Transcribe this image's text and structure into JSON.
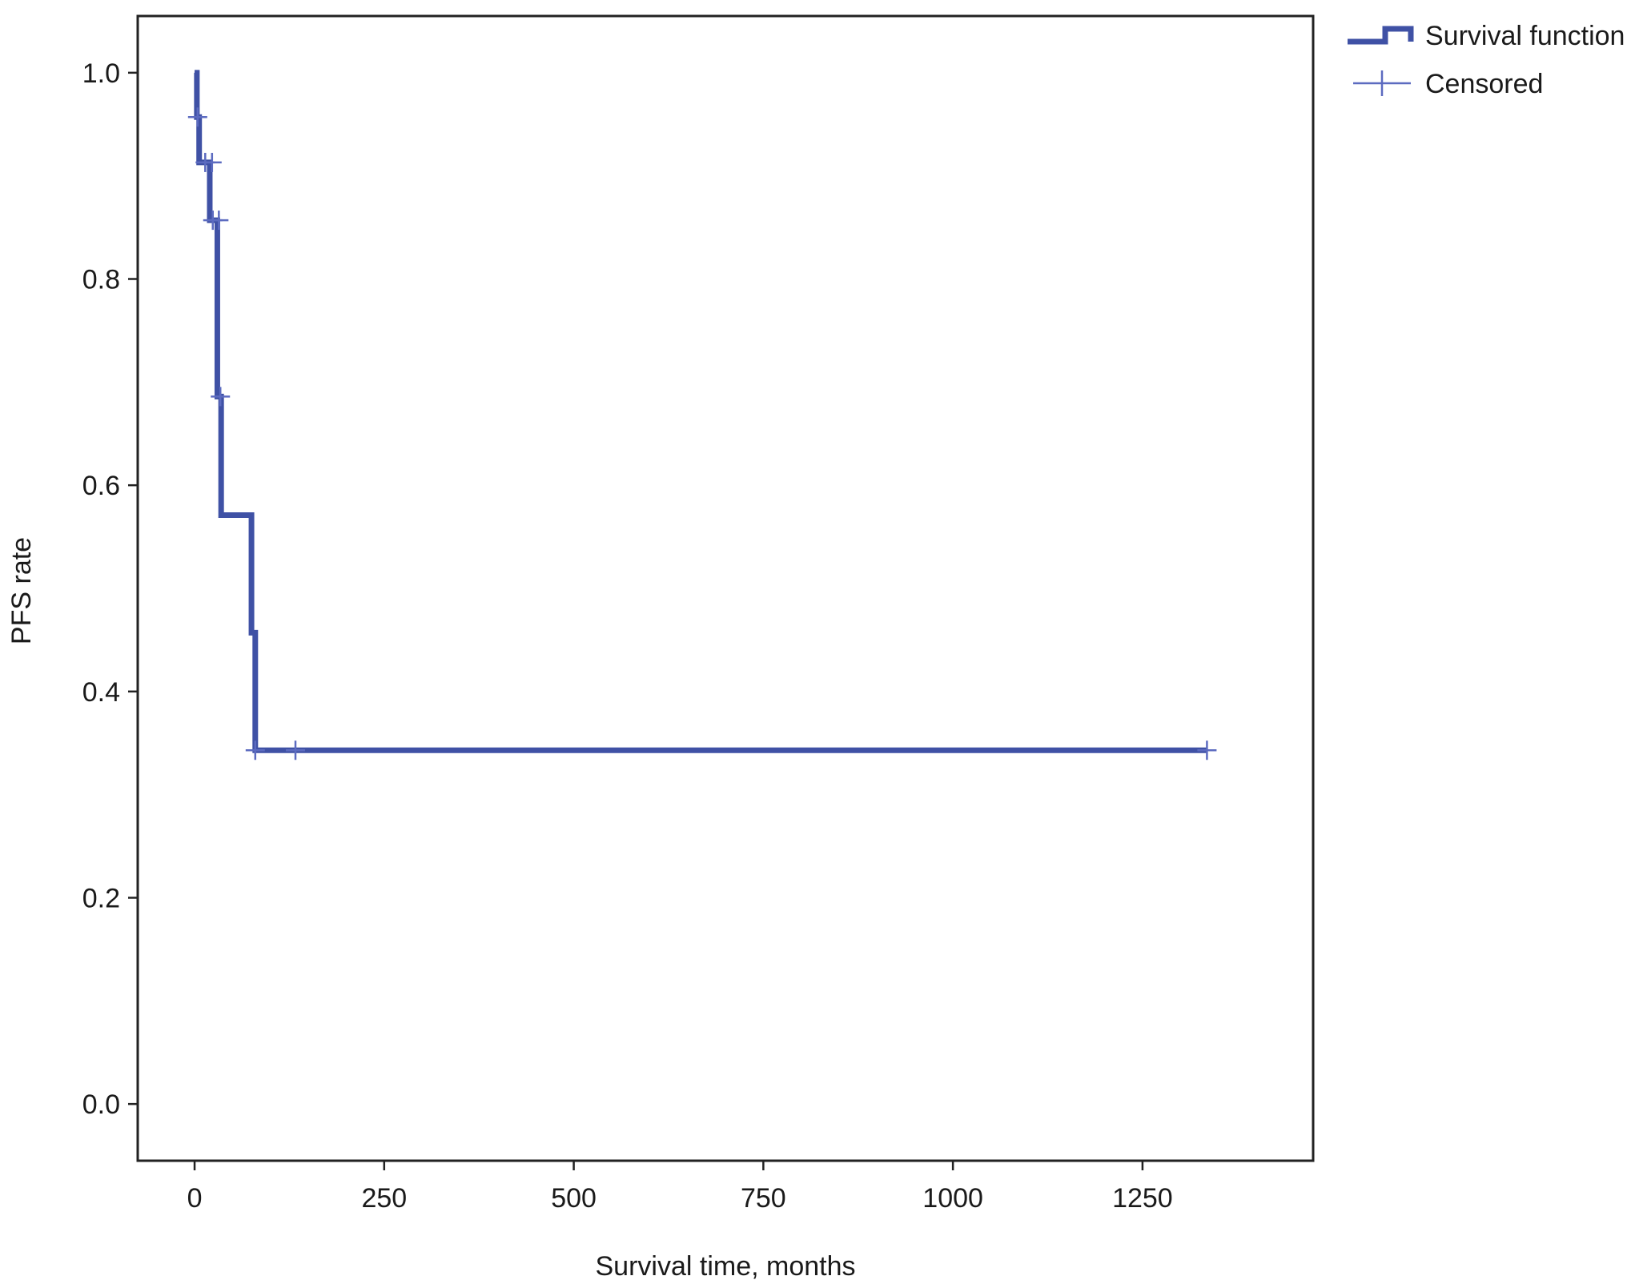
{
  "chart_data": {
    "type": "line",
    "title": "",
    "xlabel": "Survival time, months",
    "ylabel": "PFS rate",
    "xlim": [
      -75,
      1475
    ],
    "ylim": [
      -0.055,
      1.055
    ],
    "x_ticks": [
      {
        "value": 0,
        "label": "0"
      },
      {
        "value": 250,
        "label": "250"
      },
      {
        "value": 500,
        "label": "500"
      },
      {
        "value": 750,
        "label": "750"
      },
      {
        "value": 1000,
        "label": "1000"
      },
      {
        "value": 1250,
        "label": "1250"
      }
    ],
    "y_ticks": [
      {
        "value": 0.0,
        "label": "0.0"
      },
      {
        "value": 0.2,
        "label": "0.2"
      },
      {
        "value": 0.4,
        "label": "0.4"
      },
      {
        "value": 0.6,
        "label": "0.6"
      },
      {
        "value": 0.8,
        "label": "0.8"
      },
      {
        "value": 1.0,
        "label": "1.0"
      }
    ],
    "grid": false,
    "legend_position": "outside top-right",
    "colors": {
      "survival": "#3f51a5",
      "censored": "#5c6bc0",
      "frame": "#222222"
    },
    "legend": [
      {
        "label": "Survival function",
        "icon": "step-line-icon"
      },
      {
        "label": "Censored",
        "icon": "plus-mark-icon"
      }
    ],
    "series": [
      {
        "name": "Survival function",
        "steps": [
          {
            "x": 0,
            "y": 1.0
          },
          {
            "x": 3,
            "y": 0.957
          },
          {
            "x": 6,
            "y": 0.913
          },
          {
            "x": 20,
            "y": 0.857
          },
          {
            "x": 30,
            "y": 0.686
          },
          {
            "x": 35,
            "y": 0.571
          },
          {
            "x": 75,
            "y": 0.457
          },
          {
            "x": 80,
            "y": 0.343
          },
          {
            "x": 1335,
            "y": 0.343
          }
        ]
      },
      {
        "name": "Censored",
        "points": [
          {
            "x": 4,
            "y": 0.957
          },
          {
            "x": 14,
            "y": 0.913
          },
          {
            "x": 23,
            "y": 0.913
          },
          {
            "x": 24,
            "y": 0.857
          },
          {
            "x": 32,
            "y": 0.857
          },
          {
            "x": 34,
            "y": 0.686
          },
          {
            "x": 80,
            "y": 0.343
          },
          {
            "x": 133,
            "y": 0.343
          },
          {
            "x": 1335,
            "y": 0.343
          }
        ]
      }
    ]
  }
}
